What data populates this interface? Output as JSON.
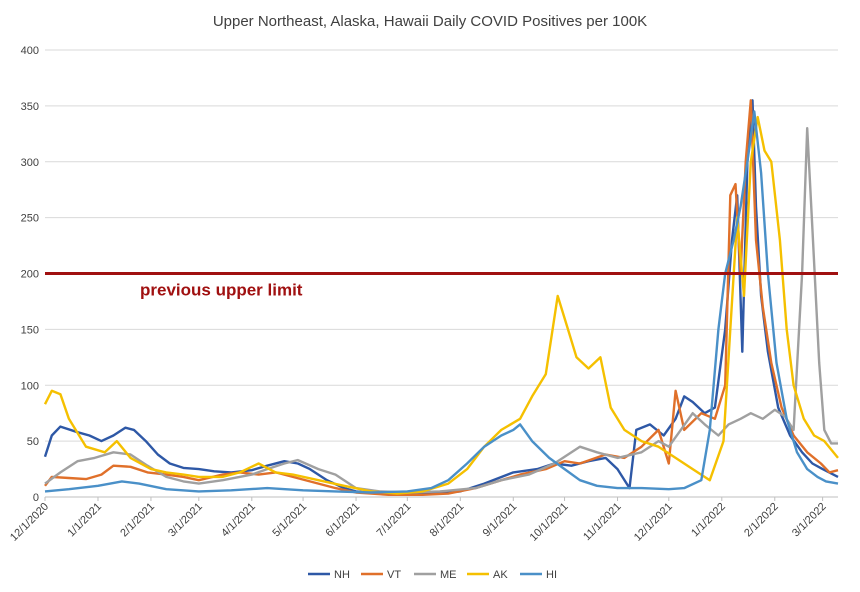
{
  "chart_data": {
    "type": "line",
    "title": "Upper Northeast, Alaska, Hawaii Daily COVID Positives per 100K",
    "xlabel": "",
    "ylabel": "",
    "ylim": [
      0,
      400
    ],
    "yticks": [
      0,
      50,
      100,
      150,
      200,
      250,
      300,
      350,
      400
    ],
    "x_start": "12/1/2020",
    "x_end": "3/10/2022",
    "xticks": [
      "12/1/2020",
      "1/1/2021",
      "2/1/2021",
      "3/1/2021",
      "4/1/2021",
      "5/1/2021",
      "6/1/2021",
      "7/1/2021",
      "8/1/2021",
      "9/1/2021",
      "10/1/2021",
      "11/1/2021",
      "12/1/2021",
      "1/1/2022",
      "2/1/2022",
      "3/1/2022"
    ],
    "gridlines": true,
    "legend_position": "bottom",
    "reference_line": {
      "value": 200,
      "label": "previous upper limit",
      "color": "#a01010"
    },
    "series": [
      {
        "name": "NH",
        "color": "#2e58a6",
        "points": [
          [
            "12/1/2020",
            36
          ],
          [
            "12/5/2020",
            55
          ],
          [
            "12/10/2020",
            63
          ],
          [
            "12/20/2020",
            58
          ],
          [
            "12/27/2020",
            55
          ],
          [
            "1/3/2021",
            50
          ],
          [
            "1/10/2021",
            55
          ],
          [
            "1/17/2021",
            62
          ],
          [
            "1/22/2021",
            60
          ],
          [
            "1/29/2021",
            50
          ],
          [
            "2/5/2021",
            38
          ],
          [
            "2/12/2021",
            30
          ],
          [
            "2/20/2021",
            26
          ],
          [
            "3/1/2021",
            25
          ],
          [
            "3/10/2021",
            23
          ],
          [
            "3/20/2021",
            22
          ],
          [
            "4/1/2021",
            24
          ],
          [
            "4/10/2021",
            28
          ],
          [
            "4/20/2021",
            32
          ],
          [
            "4/28/2021",
            30
          ],
          [
            "5/5/2021",
            25
          ],
          [
            "5/15/2021",
            15
          ],
          [
            "5/25/2021",
            8
          ],
          [
            "6/1/2021",
            5
          ],
          [
            "6/15/2021",
            3
          ],
          [
            "7/1/2021",
            2
          ],
          [
            "7/15/2021",
            3
          ],
          [
            "8/1/2021",
            5
          ],
          [
            "8/15/2021",
            12
          ],
          [
            "9/1/2021",
            22
          ],
          [
            "9/15/2021",
            25
          ],
          [
            "9/25/2021",
            30
          ],
          [
            "10/5/2021",
            28
          ],
          [
            "10/15/2021",
            32
          ],
          [
            "10/25/2021",
            35
          ],
          [
            "11/1/2021",
            25
          ],
          [
            "11/8/2021",
            8
          ],
          [
            "11/12/2021",
            60
          ],
          [
            "11/20/2021",
            65
          ],
          [
            "11/28/2021",
            55
          ],
          [
            "12/5/2021",
            70
          ],
          [
            "12/10/2021",
            90
          ],
          [
            "12/15/2021",
            85
          ],
          [
            "12/22/2021",
            75
          ],
          [
            "12/28/2021",
            80
          ],
          [
            "1/3/2022",
            150
          ],
          [
            "1/7/2022",
            230
          ],
          [
            "1/10/2022",
            270
          ],
          [
            "1/13/2022",
            130
          ],
          [
            "1/16/2022",
            300
          ],
          [
            "1/19/2022",
            355
          ],
          [
            "1/21/2022",
            260
          ],
          [
            "1/24/2022",
            180
          ],
          [
            "1/28/2022",
            130
          ],
          [
            "2/3/2022",
            80
          ],
          [
            "2/10/2022",
            55
          ],
          [
            "2/17/2022",
            40
          ],
          [
            "2/23/2022",
            30
          ],
          [
            "3/1/2022",
            25
          ],
          [
            "3/10/2022",
            18
          ]
        ]
      },
      {
        "name": "VT",
        "color": "#e0702a",
        "points": [
          [
            "12/1/2020",
            10
          ],
          [
            "12/5/2020",
            18
          ],
          [
            "12/15/2020",
            17
          ],
          [
            "12/25/2020",
            16
          ],
          [
            "1/3/2021",
            20
          ],
          [
            "1/10/2021",
            28
          ],
          [
            "1/20/2021",
            27
          ],
          [
            "1/30/2021",
            22
          ],
          [
            "2/10/2021",
            20
          ],
          [
            "2/20/2021",
            18
          ],
          [
            "3/1/2021",
            15
          ],
          [
            "3/15/2021",
            20
          ],
          [
            "3/25/2021",
            22
          ],
          [
            "4/5/2021",
            20
          ],
          [
            "4/15/2021",
            22
          ],
          [
            "4/25/2021",
            18
          ],
          [
            "5/5/2021",
            14
          ],
          [
            "5/20/2021",
            8
          ],
          [
            "6/1/2021",
            4
          ],
          [
            "6/20/2021",
            2
          ],
          [
            "7/10/2021",
            2
          ],
          [
            "7/25/2021",
            3
          ],
          [
            "8/10/2021",
            8
          ],
          [
            "8/25/2021",
            15
          ],
          [
            "9/5/2021",
            20
          ],
          [
            "9/20/2021",
            25
          ],
          [
            "10/1/2021",
            32
          ],
          [
            "10/10/2021",
            30
          ],
          [
            "10/25/2021",
            38
          ],
          [
            "11/5/2021",
            35
          ],
          [
            "11/15/2021",
            45
          ],
          [
            "11/25/2021",
            60
          ],
          [
            "12/1/2021",
            30
          ],
          [
            "12/5/2021",
            95
          ],
          [
            "12/10/2021",
            60
          ],
          [
            "12/20/2021",
            75
          ],
          [
            "12/28/2021",
            70
          ],
          [
            "1/3/2022",
            100
          ],
          [
            "1/6/2022",
            270
          ],
          [
            "1/9/2022",
            280
          ],
          [
            "1/12/2022",
            200
          ],
          [
            "1/15/2022",
            300
          ],
          [
            "1/18/2022",
            355
          ],
          [
            "1/21/2022",
            230
          ],
          [
            "1/25/2022",
            170
          ],
          [
            "1/30/2022",
            120
          ],
          [
            "2/5/2022",
            80
          ],
          [
            "2/12/2022",
            55
          ],
          [
            "2/20/2022",
            40
          ],
          [
            "2/28/2022",
            30
          ],
          [
            "3/5/2022",
            22
          ],
          [
            "3/10/2022",
            24
          ]
        ]
      },
      {
        "name": "ME",
        "color": "#a0a0a0",
        "points": [
          [
            "12/1/2020",
            12
          ],
          [
            "12/10/2020",
            22
          ],
          [
            "12/20/2020",
            32
          ],
          [
            "12/30/2020",
            35
          ],
          [
            "1/10/2021",
            40
          ],
          [
            "1/20/2021",
            38
          ],
          [
            "1/30/2021",
            28
          ],
          [
            "2/10/2021",
            18
          ],
          [
            "2/20/2021",
            14
          ],
          [
            "3/1/2021",
            12
          ],
          [
            "3/15/2021",
            15
          ],
          [
            "4/1/2021",
            20
          ],
          [
            "4/10/2021",
            25
          ],
          [
            "4/20/2021",
            30
          ],
          [
            "4/28/2021",
            33
          ],
          [
            "5/10/2021",
            25
          ],
          [
            "5/20/2021",
            20
          ],
          [
            "6/1/2021",
            8
          ],
          [
            "6/15/2021",
            5
          ],
          [
            "7/1/2021",
            4
          ],
          [
            "7/20/2021",
            5
          ],
          [
            "8/10/2021",
            8
          ],
          [
            "8/25/2021",
            15
          ],
          [
            "9/10/2021",
            20
          ],
          [
            "9/25/2021",
            30
          ],
          [
            "10/10/2021",
            45
          ],
          [
            "10/20/2021",
            40
          ],
          [
            "11/1/2021",
            35
          ],
          [
            "11/15/2021",
            40
          ],
          [
            "11/25/2021",
            50
          ],
          [
            "12/1/2021",
            45
          ],
          [
            "12/8/2021",
            60
          ],
          [
            "12/15/2021",
            75
          ],
          [
            "12/22/2021",
            65
          ],
          [
            "12/30/2021",
            55
          ],
          [
            "1/5/2022",
            65
          ],
          [
            "1/12/2022",
            70
          ],
          [
            "1/18/2022",
            75
          ],
          [
            "1/25/2022",
            70
          ],
          [
            "2/1/2022",
            78
          ],
          [
            "2/7/2022",
            72
          ],
          [
            "2/12/2022",
            60
          ],
          [
            "2/17/2022",
            200
          ],
          [
            "2/20/2022",
            330
          ],
          [
            "2/23/2022",
            240
          ],
          [
            "2/27/2022",
            120
          ],
          [
            "3/2/2022",
            60
          ],
          [
            "3/6/2022",
            48
          ],
          [
            "3/10/2022",
            48
          ]
        ]
      },
      {
        "name": "AK",
        "color": "#f5c000",
        "points": [
          [
            "12/1/2020",
            83
          ],
          [
            "12/5/2020",
            95
          ],
          [
            "12/10/2020",
            92
          ],
          [
            "12/15/2020",
            70
          ],
          [
            "12/25/2020",
            45
          ],
          [
            "1/5/2021",
            40
          ],
          [
            "1/12/2021",
            50
          ],
          [
            "1/20/2021",
            35
          ],
          [
            "2/1/2021",
            25
          ],
          [
            "2/10/2021",
            22
          ],
          [
            "2/20/2021",
            20
          ],
          [
            "3/1/2021",
            18
          ],
          [
            "3/15/2021",
            18
          ],
          [
            "3/25/2021",
            22
          ],
          [
            "4/5/2021",
            30
          ],
          [
            "4/15/2021",
            22
          ],
          [
            "4/25/2021",
            20
          ],
          [
            "5/10/2021",
            15
          ],
          [
            "5/25/2021",
            10
          ],
          [
            "6/10/2021",
            5
          ],
          [
            "6/25/2021",
            3
          ],
          [
            "7/10/2021",
            5
          ],
          [
            "7/25/2021",
            12
          ],
          [
            "8/5/2021",
            25
          ],
          [
            "8/15/2021",
            45
          ],
          [
            "8/25/2021",
            60
          ],
          [
            "9/5/2021",
            70
          ],
          [
            "9/12/2021",
            90
          ],
          [
            "9/20/2021",
            110
          ],
          [
            "9/27/2021",
            180
          ],
          [
            "10/3/2021",
            150
          ],
          [
            "10/8/2021",
            125
          ],
          [
            "10/15/2021",
            115
          ],
          [
            "10/22/2021",
            125
          ],
          [
            "10/28/2021",
            80
          ],
          [
            "11/5/2021",
            60
          ],
          [
            "11/15/2021",
            50
          ],
          [
            "11/25/2021",
            45
          ],
          [
            "12/5/2021",
            35
          ],
          [
            "12/15/2021",
            25
          ],
          [
            "12/25/2021",
            15
          ],
          [
            "1/2/2022",
            50
          ],
          [
            "1/6/2022",
            150
          ],
          [
            "1/10/2022",
            250
          ],
          [
            "1/14/2022",
            180
          ],
          [
            "1/18/2022",
            300
          ],
          [
            "1/22/2022",
            340
          ],
          [
            "1/26/2022",
            310
          ],
          [
            "1/30/2022",
            300
          ],
          [
            "2/4/2022",
            230
          ],
          [
            "2/8/2022",
            150
          ],
          [
            "2/12/2022",
            100
          ],
          [
            "2/18/2022",
            70
          ],
          [
            "2/24/2022",
            55
          ],
          [
            "3/2/2022",
            50
          ],
          [
            "3/10/2022",
            35
          ]
        ]
      },
      {
        "name": "HI",
        "color": "#4a90c8",
        "points": [
          [
            "12/1/2020",
            5
          ],
          [
            "12/15/2020",
            7
          ],
          [
            "1/1/2021",
            10
          ],
          [
            "1/15/2021",
            14
          ],
          [
            "1/25/2021",
            12
          ],
          [
            "2/10/2021",
            7
          ],
          [
            "3/1/2021",
            5
          ],
          [
            "3/20/2021",
            6
          ],
          [
            "4/10/2021",
            8
          ],
          [
            "5/1/2021",
            6
          ],
          [
            "5/20/2021",
            5
          ],
          [
            "6/10/2021",
            4
          ],
          [
            "7/1/2021",
            5
          ],
          [
            "7/15/2021",
            8
          ],
          [
            "7/25/2021",
            15
          ],
          [
            "8/5/2021",
            30
          ],
          [
            "8/15/2021",
            45
          ],
          [
            "8/25/2021",
            55
          ],
          [
            "9/1/2021",
            60
          ],
          [
            "9/5/2021",
            65
          ],
          [
            "9/12/2021",
            50
          ],
          [
            "9/22/2021",
            35
          ],
          [
            "10/1/2021",
            25
          ],
          [
            "10/10/2021",
            15
          ],
          [
            "10/20/2021",
            10
          ],
          [
            "11/1/2021",
            8
          ],
          [
            "11/15/2021",
            8
          ],
          [
            "12/1/2021",
            7
          ],
          [
            "12/10/2021",
            8
          ],
          [
            "12/20/2021",
            15
          ],
          [
            "12/25/2021",
            60
          ],
          [
            "12/30/2021",
            150
          ],
          [
            "1/3/2022",
            200
          ],
          [
            "1/8/2022",
            230
          ],
          [
            "1/12/2022",
            260
          ],
          [
            "1/16/2022",
            300
          ],
          [
            "1/20/2022",
            345
          ],
          [
            "1/24/2022",
            290
          ],
          [
            "1/28/2022",
            200
          ],
          [
            "2/2/2022",
            120
          ],
          [
            "2/8/2022",
            70
          ],
          [
            "2/14/2022",
            40
          ],
          [
            "2/20/2022",
            25
          ],
          [
            "2/26/2022",
            18
          ],
          [
            "3/3/2022",
            14
          ],
          [
            "3/10/2022",
            12
          ]
        ]
      }
    ]
  }
}
